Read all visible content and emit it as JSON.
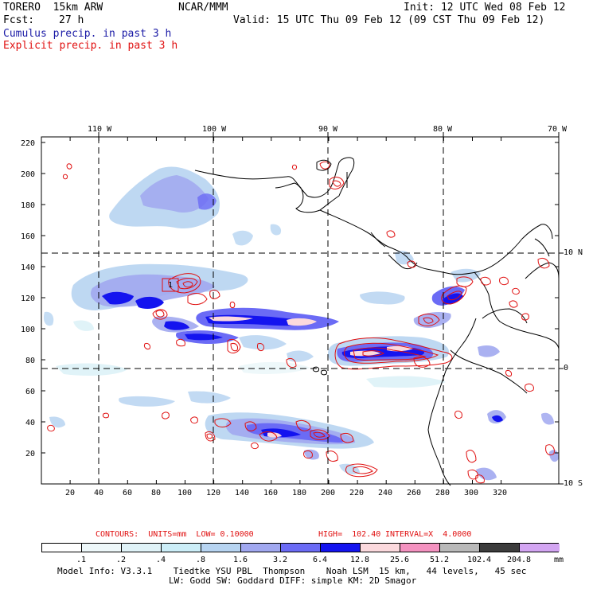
{
  "header": {
    "model": "TORERO  15km ARW",
    "org": "NCAR/MMM",
    "init": "Init: 12 UTC Wed 08 Feb 12",
    "fcst_label": "Fcst:",
    "fcst_value": "27 h",
    "valid": "Valid: 15 UTC Thu 09 Feb 12 (09 CST Thu 09 Feb 12)"
  },
  "legend_titles": {
    "cumulus": "Cumulus precip. in past 3 h",
    "explicit": "Explicit precip. in past 3 h"
  },
  "map": {
    "top_lon_labels": [
      "110 W",
      "100 W",
      "90 W",
      "80 W",
      "70 W"
    ],
    "right_lat_labels": [
      "10 N",
      "0",
      "10 S"
    ],
    "left_ticks": [
      "220",
      "200",
      "180",
      "160",
      "140",
      "120",
      "100",
      "80",
      "60",
      "40",
      "20"
    ],
    "bottom_ticks": [
      "20",
      "40",
      "60",
      "80",
      "100",
      "120",
      "140",
      "160",
      "180",
      "200",
      "220",
      "240",
      "260",
      "280",
      "300",
      "320"
    ],
    "inner_label": "1"
  },
  "contour_info": {
    "units": "CONTOURS:  UNITS=mm  LOW= 0.10000",
    "high": "HIGH=  102.40",
    "interval": "INTERVAL=X  4.0000"
  },
  "colorbar": {
    "values": [
      ".1",
      ".2",
      ".4",
      ".8",
      "1.6",
      "3.2",
      "6.4",
      "12.8",
      "25.6",
      "51.2",
      "102.4",
      "204.8"
    ],
    "unit": "mm",
    "colors": [
      "#ffffff",
      "#eef8fa",
      "#e0f3f8",
      "#cceef8",
      "#b7d4f1",
      "#a1a8f0",
      "#6b6bf5",
      "#1414ef",
      "#fbd9dd",
      "#f492c0",
      "#b9b9b9",
      "#3c3c3c",
      "#d3a5f2"
    ]
  },
  "model_info": {
    "line1": "Model Info: V3.3.1    Tiedtke YSU PBL  Thompson    Noah LSM  15 km,   44 levels,   45 sec",
    "line2": "LW: Godd SW: Goddard DIFF: simple KM: 2D Smagor"
  }
}
